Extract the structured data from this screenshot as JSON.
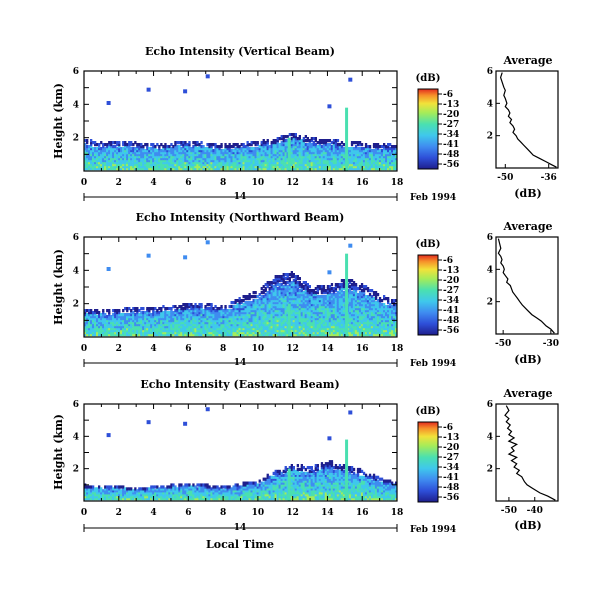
{
  "chart_data": [
    {
      "type": "heatmap",
      "title": "Echo Intensity (Vertical Beam)",
      "ylabel": "Height (km)",
      "x_ticks": [
        "0",
        "2",
        "4",
        "6",
        "8",
        "10",
        "12",
        "14",
        "16",
        "18"
      ],
      "y_ticks": [
        "6",
        "4",
        "2"
      ],
      "xlim": [
        0,
        18
      ],
      "ylim": [
        0,
        6
      ],
      "date_marker": "14",
      "date_label": "Feb 1994",
      "colorbar": {
        "unit": "(dB)",
        "ticks": [
          "-6",
          "-13",
          "-20",
          "-27",
          "-34",
          "-41",
          "-48",
          "-56"
        ]
      },
      "features": {
        "top_km": [
          1.8,
          1.6,
          1.7,
          1.6,
          1.5,
          1.6,
          1.7,
          1.6,
          1.5,
          1.6,
          1.7,
          1.9,
          2.2,
          1.9,
          1.8,
          1.7,
          1.6,
          1.5,
          1.5
        ],
        "spikes_h": [
          11.8,
          15.1
        ]
      },
      "profile": {
        "title": "Average",
        "xlabel": "(dB)",
        "x_ticks": [
          "-50",
          "-36"
        ],
        "y_ticks": [
          "6",
          "4",
          "2"
        ],
        "xlim": [
          -53,
          -33
        ],
        "ylim": [
          0,
          6
        ],
        "x": [
          -51,
          -51.5,
          -51,
          -50.5,
          -50,
          -50.5,
          -50,
          -49.5,
          -50,
          -49,
          -48.5,
          -49,
          -48,
          -48.5,
          -47.5,
          -47,
          -47.5,
          -46.5,
          -46,
          -45,
          -44,
          -43,
          -42,
          -41,
          -39,
          -37,
          -35,
          -33.5
        ],
        "y": [
          5.9,
          5.6,
          5.3,
          5.0,
          4.8,
          4.5,
          4.3,
          4.0,
          3.8,
          3.6,
          3.4,
          3.2,
          3.0,
          2.8,
          2.6,
          2.4,
          2.2,
          2.0,
          1.8,
          1.6,
          1.4,
          1.2,
          1.0,
          0.8,
          0.6,
          0.4,
          0.2,
          0.05
        ]
      }
    },
    {
      "type": "heatmap",
      "title": "Echo Intensity (Northward Beam)",
      "ylabel": "Height (km)",
      "x_ticks": [
        "0",
        "2",
        "4",
        "6",
        "8",
        "10",
        "12",
        "14",
        "16",
        "18"
      ],
      "y_ticks": [
        "6",
        "4",
        "2"
      ],
      "xlim": [
        0,
        18
      ],
      "ylim": [
        0,
        6
      ],
      "date_marker": "14",
      "date_label": "Feb 1994",
      "colorbar": {
        "unit": "(dB)",
        "ticks": [
          "-6",
          "-13",
          "-20",
          "-27",
          "-34",
          "-41",
          "-48",
          "-56"
        ]
      },
      "features": {
        "top_km": [
          1.6,
          1.5,
          1.6,
          1.7,
          1.7,
          1.8,
          1.9,
          1.9,
          1.8,
          2.3,
          2.8,
          3.6,
          3.8,
          2.9,
          3.0,
          3.4,
          3.1,
          2.4,
          2.1
        ],
        "spikes_h": [
          11.8,
          15.1
        ]
      },
      "profile": {
        "title": "Average",
        "xlabel": "(dB)",
        "x_ticks": [
          "-50",
          "-30"
        ],
        "y_ticks": [
          "6",
          "4",
          "2"
        ],
        "xlim": [
          -53,
          -27
        ],
        "ylim": [
          0,
          6
        ],
        "x": [
          -52,
          -51.5,
          -51,
          -52,
          -51,
          -50.5,
          -51,
          -50,
          -49.5,
          -50,
          -49,
          -48,
          -48.5,
          -47,
          -46.5,
          -46,
          -45,
          -44,
          -43,
          -42,
          -40,
          -38,
          -36,
          -34,
          -32,
          -30,
          -28.5
        ],
        "y": [
          5.9,
          5.6,
          5.3,
          5.0,
          4.8,
          4.6,
          4.4,
          4.2,
          4.0,
          3.8,
          3.6,
          3.4,
          3.2,
          3.0,
          2.8,
          2.6,
          2.4,
          2.2,
          2.0,
          1.8,
          1.5,
          1.2,
          1.0,
          0.8,
          0.5,
          0.3,
          0.05
        ]
      }
    },
    {
      "type": "heatmap",
      "title": "Echo Intensity (Eastward Beam)",
      "ylabel": "Height (km)",
      "xlabel": "Local Time",
      "x_ticks": [
        "0",
        "2",
        "4",
        "6",
        "8",
        "10",
        "12",
        "14",
        "16",
        "18"
      ],
      "y_ticks": [
        "6",
        "4",
        "2"
      ],
      "xlim": [
        0,
        18
      ],
      "ylim": [
        0,
        6
      ],
      "date_marker": "14",
      "date_label": "Feb 1994",
      "colorbar": {
        "unit": "(dB)",
        "ticks": [
          "-6",
          "-13",
          "-20",
          "-27",
          "-34",
          "-41",
          "-48",
          "-56"
        ]
      },
      "features": {
        "top_km": [
          0.9,
          0.8,
          0.8,
          0.7,
          0.8,
          0.9,
          1.0,
          0.9,
          0.8,
          1.0,
          1.2,
          1.8,
          2.2,
          2.0,
          2.4,
          2.1,
          1.8,
          1.3,
          1.1
        ],
        "spikes_h": [
          11.8,
          15.1
        ]
      },
      "profile": {
        "title": "Average",
        "xlabel": "(dB)",
        "x_ticks": [
          "-50",
          "-40"
        ],
        "y_ticks": [
          "6",
          "4",
          "2"
        ],
        "xlim": [
          -55,
          -31
        ],
        "ylim": [
          0,
          6
        ],
        "x": [
          -51,
          -50,
          -51.5,
          -50,
          -51,
          -49.5,
          -50.5,
          -49,
          -50,
          -48,
          -50,
          -47,
          -49,
          -48,
          -50,
          -47,
          -49,
          -47,
          -48,
          -46,
          -47,
          -45,
          -44,
          -43,
          -41,
          -38,
          -35,
          -32
        ],
        "y": [
          5.9,
          5.6,
          5.3,
          5.1,
          4.9,
          4.7,
          4.5,
          4.3,
          4.1,
          3.9,
          3.7,
          3.5,
          3.3,
          3.1,
          2.9,
          2.7,
          2.5,
          2.3,
          2.1,
          1.9,
          1.7,
          1.5,
          1.2,
          1.0,
          0.8,
          0.5,
          0.3,
          0.05
        ]
      }
    }
  ]
}
